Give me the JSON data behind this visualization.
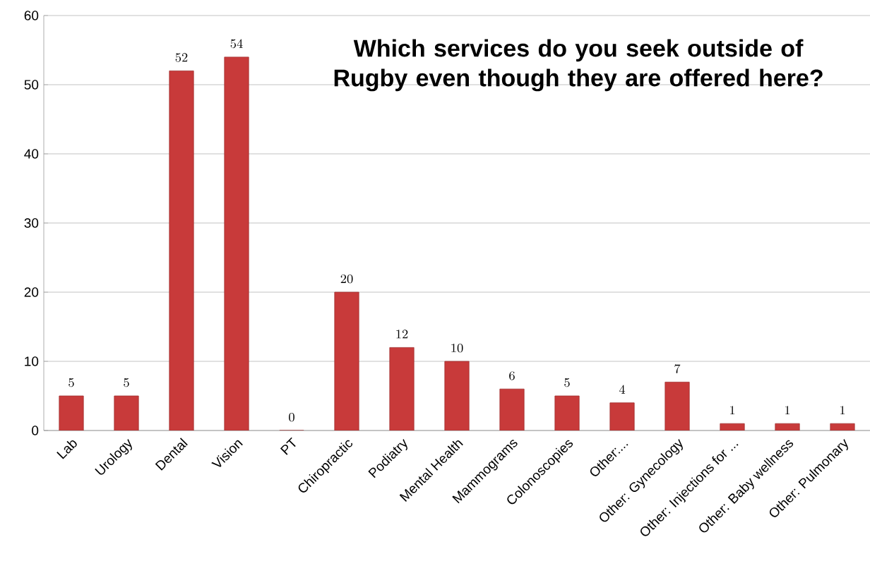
{
  "chart_data": {
    "type": "bar",
    "title": "Which services do you seek outside of Rugby even though they are offered here?",
    "categories": [
      "Lab",
      "Urology",
      "Dental",
      "Vision",
      "PT",
      "Chiropractic",
      "Podiatry",
      "Mental Health",
      "Mammograms",
      "Colonoscopies",
      "Other:...",
      "Other: Gynecology",
      "Other: Injections for ...",
      "Other: Baby wellness",
      "Other: Pulmonary"
    ],
    "values": [
      5,
      5,
      52,
      54,
      0,
      20,
      12,
      10,
      6,
      5,
      4,
      7,
      1,
      1,
      1
    ],
    "color": "#c83a3a",
    "ylim": [
      0,
      60
    ],
    "yticks": [
      0,
      10,
      20,
      30,
      40,
      50,
      60
    ],
    "grid": "y",
    "data_labels": true
  }
}
